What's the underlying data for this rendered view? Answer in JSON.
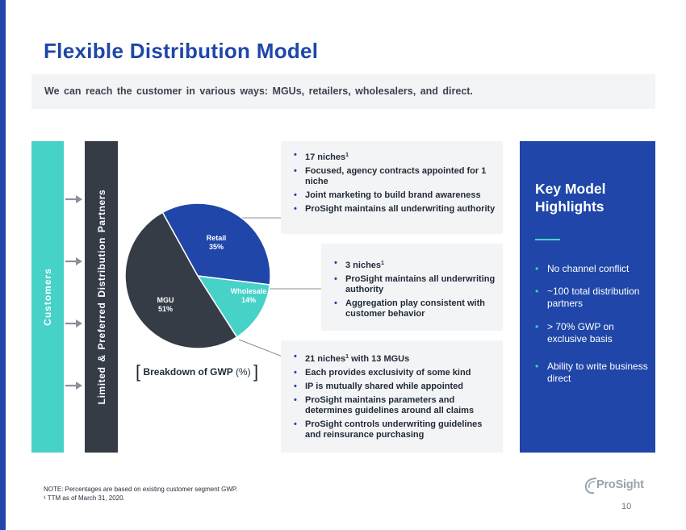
{
  "title": "Flexible Distribution Model",
  "subtitle": "We can reach the customer in various ways: MGUs, retailers, wholesalers, and direct.",
  "customers_label": "Customers",
  "partners_label": "Limited & Preferred Distribution Partners",
  "chart_data": {
    "type": "pie",
    "slices": [
      {
        "label": "Retail",
        "value": 35,
        "value_label": "35%",
        "color": "#1f46a8"
      },
      {
        "label": "Wholesale",
        "value": 14,
        "value_label": "14%",
        "color": "#47d2c8"
      },
      {
        "label": "MGU",
        "value": 51,
        "value_label": "51%",
        "color": "#363c45"
      }
    ],
    "caption_main": "Breakdown of GWP",
    "caption_unit": "(%)"
  },
  "retail_box": {
    "items": [
      {
        "text": "17 niches",
        "sup": "1"
      },
      {
        "text": "Focused, agency contracts appointed for 1 niche",
        "sup": ""
      },
      {
        "text": "Joint marketing to build brand awareness",
        "sup": ""
      },
      {
        "text": "ProSight maintains all underwriting authority",
        "sup": ""
      }
    ]
  },
  "wholesale_box": {
    "items": [
      {
        "text": "3 niches",
        "sup": "1"
      },
      {
        "text": "ProSight maintains all underwriting authority",
        "sup": ""
      },
      {
        "text": "Aggregation play consistent with customer behavior",
        "sup": ""
      }
    ]
  },
  "mgu_box": {
    "items": [
      {
        "text": "21 niches",
        "sup": "1",
        "rest": " with 13 MGUs"
      },
      {
        "text": "Each provides exclusivity of some kind",
        "sup": "",
        "rest": ""
      },
      {
        "text": "IP is mutually shared while appointed",
        "sup": "",
        "rest": ""
      },
      {
        "text": "ProSight maintains parameters and determines guidelines around all claims",
        "sup": "",
        "rest": ""
      },
      {
        "text": "ProSight controls underwriting guidelines and reinsurance purchasing",
        "sup": "",
        "rest": ""
      }
    ]
  },
  "highlights": {
    "title_line1": "Key Model",
    "title_line2": "Highlights",
    "items": [
      "No channel conflict",
      "~100 total distribution partners",
      "> 70% GWP on exclusive basis",
      "Ability to write business direct"
    ]
  },
  "bullet_char": "•",
  "note_line1": "NOTE:  Percentages are based on existing customer segment GWP.",
  "note_line2": "¹ TTM  as of March 31, 2020.",
  "logo_text": "ProSight",
  "page_number": "10",
  "colors": {
    "brand_blue": "#1f46a8",
    "teal": "#47d2c8",
    "dark": "#363c45",
    "panel_gray": "#f3f4f6"
  }
}
